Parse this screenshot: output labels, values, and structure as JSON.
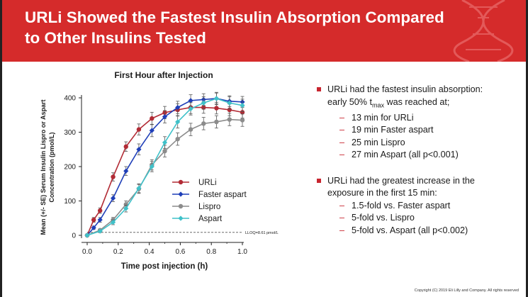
{
  "slide": {
    "title_line1": "URLi Showed the Fastest Insulin Absorption Compared",
    "title_line2": "to Other Insulins Tested",
    "copyright": "Copyright (C) 2019 Eli Lilly and Company. All rights reserved"
  },
  "bullets": [
    {
      "text_line1": "URLi had the fastest insulin absorption:",
      "text_line2_prefix": "early 50% t",
      "text_line2_sub": "max",
      "text_line2_suffix": " was reached at;",
      "subitems": [
        "13 min for URLi",
        "19 min Faster aspart",
        "25 min Lispro",
        "27 min Aspart (all p<0.001)"
      ]
    },
    {
      "text_line1": "URLi had the greatest increase in the",
      "text_line2": "exposure in the first 15 min:",
      "subitems": [
        "1.5-fold vs. Faster aspart",
        "5-fold vs. Lispro",
        "5-fold vs. Aspart (all p<0.002)"
      ]
    }
  ],
  "colors": {
    "header": "#d52b2b",
    "bullet_marker": "#c8252f",
    "urli": "#b22b35",
    "faster_aspart": "#1f3fb8",
    "lispro": "#8c8c8c",
    "aspart": "#3fc1c9"
  },
  "chart_data": {
    "type": "line",
    "title": "First Hour after Injection",
    "xlabel": "Time post injection (h)",
    "ylabel_line1": "Mean (+/- SE) Serum Insulin Lispro or Aspart",
    "ylabel_line2": "Concentration (pmol/L)",
    "xlim": [
      0,
      1.0
    ],
    "ylim": [
      0,
      400
    ],
    "x_ticks": [
      "0.0",
      "0.2",
      "0.4",
      "0.6",
      "0.8",
      "1.0"
    ],
    "y_ticks": [
      "0",
      "100",
      "200",
      "300",
      "400"
    ],
    "lloq_label": "LLOQ=8.61 pmol/L",
    "lloq_value": 8.61,
    "legend_position": "center",
    "series": [
      {
        "name": "URLi",
        "color": "#b22b35",
        "marker": "circle",
        "x": [
          0,
          0.042,
          0.083,
          0.167,
          0.25,
          0.333,
          0.417,
          0.5,
          0.583,
          0.667,
          0.75,
          0.833,
          0.917,
          1.0
        ],
        "y": [
          0,
          45,
          72,
          170,
          258,
          308,
          340,
          357,
          365,
          372,
          372,
          370,
          365,
          358
        ],
        "err": [
          0,
          7,
          8,
          12,
          14,
          16,
          18,
          18,
          18,
          18,
          17,
          17,
          17,
          17
        ]
      },
      {
        "name": "Faster aspart",
        "color": "#1f3fb8",
        "marker": "diamond",
        "x": [
          0,
          0.042,
          0.083,
          0.167,
          0.25,
          0.333,
          0.417,
          0.5,
          0.583,
          0.667,
          0.75,
          0.833,
          0.917,
          1.0
        ],
        "y": [
          0,
          22,
          45,
          108,
          187,
          250,
          305,
          345,
          372,
          392,
          395,
          398,
          390,
          388
        ],
        "err": [
          0,
          5,
          7,
          10,
          13,
          16,
          18,
          18,
          18,
          17,
          17,
          16,
          16,
          16
        ]
      },
      {
        "name": "Lispro",
        "color": "#8c8c8c",
        "marker": "circle",
        "x": [
          0,
          0.083,
          0.167,
          0.25,
          0.333,
          0.417,
          0.5,
          0.583,
          0.667,
          0.75,
          0.833,
          0.917,
          1.0
        ],
        "y": [
          0,
          15,
          45,
          90,
          135,
          205,
          245,
          280,
          308,
          325,
          330,
          337,
          335
        ],
        "err": [
          0,
          4,
          7,
          10,
          13,
          15,
          17,
          18,
          18,
          18,
          18,
          18,
          18
        ]
      },
      {
        "name": "Aspart",
        "color": "#3fc1c9",
        "marker": "diamond",
        "x": [
          0,
          0.083,
          0.167,
          0.25,
          0.333,
          0.417,
          0.5,
          0.583,
          0.667,
          0.75,
          0.833,
          0.917,
          1.0
        ],
        "y": [
          0,
          12,
          38,
          78,
          137,
          200,
          270,
          330,
          368,
          385,
          398,
          385,
          378
        ],
        "err": [
          0,
          4,
          7,
          10,
          13,
          15,
          17,
          18,
          18,
          18,
          18,
          18,
          18
        ]
      }
    ]
  }
}
